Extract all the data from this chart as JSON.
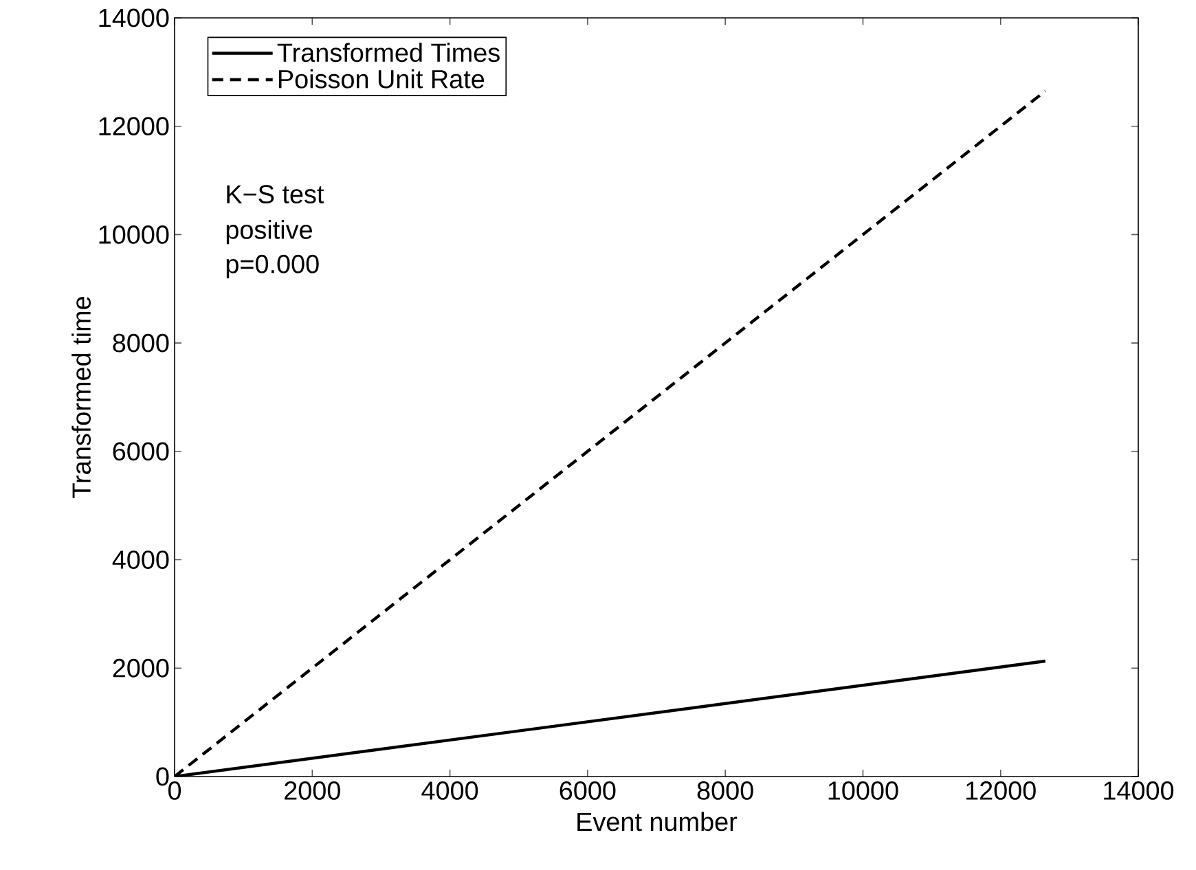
{
  "chart_data": {
    "type": "line",
    "xlabel": "Event number",
    "ylabel": "Transformed time",
    "series": [
      {
        "name": "Transformed Times",
        "color": "#000000",
        "line_style": "solid",
        "values": [
          0,
          2130
        ]
      },
      {
        "name": "Poisson Unit Rate",
        "color": "#000000",
        "line_style": "dashed",
        "values": [
          0,
          12650
        ]
      }
    ],
    "x": [
      0,
      12650
    ],
    "xlim": [
      0,
      14000
    ],
    "ylim": [
      0,
      14000
    ],
    "xticks": [
      0,
      2000,
      4000,
      6000,
      8000,
      10000,
      12000,
      14000
    ],
    "yticks": [
      0,
      2000,
      4000,
      6000,
      8000,
      10000,
      12000,
      14000
    ],
    "annotations": [
      "K−S test",
      "positive",
      "p=0.000"
    ],
    "grid": false,
    "legend": "top left",
    "marker": "none"
  }
}
